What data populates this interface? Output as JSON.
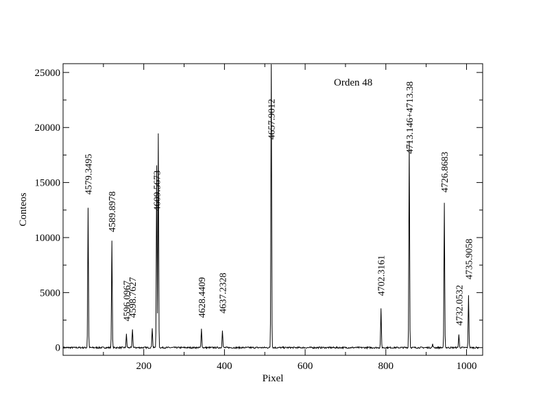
{
  "chart_data": {
    "type": "line",
    "title": "",
    "annotation": "Orden 48",
    "xlabel": "Pixel",
    "ylabel": "Conteos",
    "xlim": [
      0,
      1040
    ],
    "ylim": [
      -700,
      25800
    ],
    "xticks": [
      200,
      400,
      600,
      800,
      1000
    ],
    "xtick_labels": [
      "200",
      "400",
      "600",
      "800",
      "1000"
    ],
    "yticks": [
      0,
      5000,
      10000,
      15000,
      20000,
      25000
    ],
    "ytick_labels": [
      "0",
      "5000",
      "10000",
      "15000",
      "20000",
      "25000"
    ],
    "grid": false,
    "baseline": 0,
    "peaks": [
      {
        "x": 62,
        "y": 12700
      },
      {
        "x": 121,
        "y": 9700
      },
      {
        "x": 157,
        "y": 1200
      },
      {
        "x": 172,
        "y": 1700
      },
      {
        "x": 221,
        "y": 1800
      },
      {
        "x": 232,
        "y": 16600
      },
      {
        "x": 236,
        "y": 19400
      },
      {
        "x": 343,
        "y": 1700
      },
      {
        "x": 395,
        "y": 1600
      },
      {
        "x": 516,
        "y": 25800
      },
      {
        "x": 788,
        "y": 3500
      },
      {
        "x": 858,
        "y": 18800
      },
      {
        "x": 916,
        "y": 300
      },
      {
        "x": 945,
        "y": 13100
      },
      {
        "x": 981,
        "y": 1200
      },
      {
        "x": 1005,
        "y": 4800
      }
    ],
    "peak_labels": [
      {
        "text": "4579.3495",
        "x": 62,
        "y": 13900
      },
      {
        "text": "4589.8978",
        "x": 121,
        "y": 10500
      },
      {
        "text": "4596.0967",
        "x": 157,
        "y": 2400
      },
      {
        "text": "4598.7627",
        "x": 172,
        "y": 2700
      },
      {
        "text": "4609.5673",
        "x": 232,
        "y": 12400
      },
      {
        "text": "4628.4409",
        "x": 343,
        "y": 2700
      },
      {
        "text": "4637.2328",
        "x": 395,
        "y": 3100
      },
      {
        "text": "4657.9012",
        "x": 516,
        "y": 18900
      },
      {
        "text": "4702.3161",
        "x": 788,
        "y": 4700
      },
      {
        "text": "4713.146+4713.38",
        "x": 858,
        "y": 17600
      },
      {
        "text": "4726.8683",
        "x": 945,
        "y": 14100
      },
      {
        "text": "4732.0532",
        "x": 981,
        "y": 2000
      },
      {
        "text": "4735.9058",
        "x": 1005,
        "y": 6200
      }
    ]
  }
}
